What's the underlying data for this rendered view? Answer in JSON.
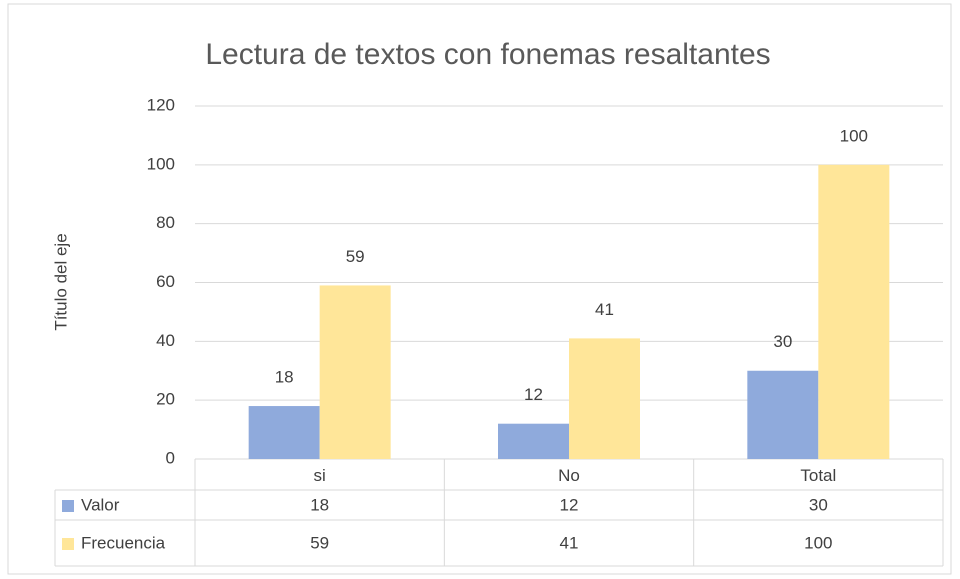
{
  "chart_data": {
    "type": "bar",
    "title": "Lectura de textos con fonemas resaltantes",
    "y_axis_label": "Título del eje",
    "categories": [
      "si",
      "No",
      "Total"
    ],
    "series": [
      {
        "name": "Valor",
        "color": "#8faadc",
        "values": [
          18,
          12,
          30
        ]
      },
      {
        "name": "Frecuencia",
        "color": "#ffe699",
        "values": [
          59,
          41,
          100
        ]
      }
    ],
    "ylim": [
      0,
      120
    ],
    "yticks": [
      0,
      20,
      40,
      60,
      80,
      100,
      120
    ],
    "grid": true,
    "data_table": true
  }
}
